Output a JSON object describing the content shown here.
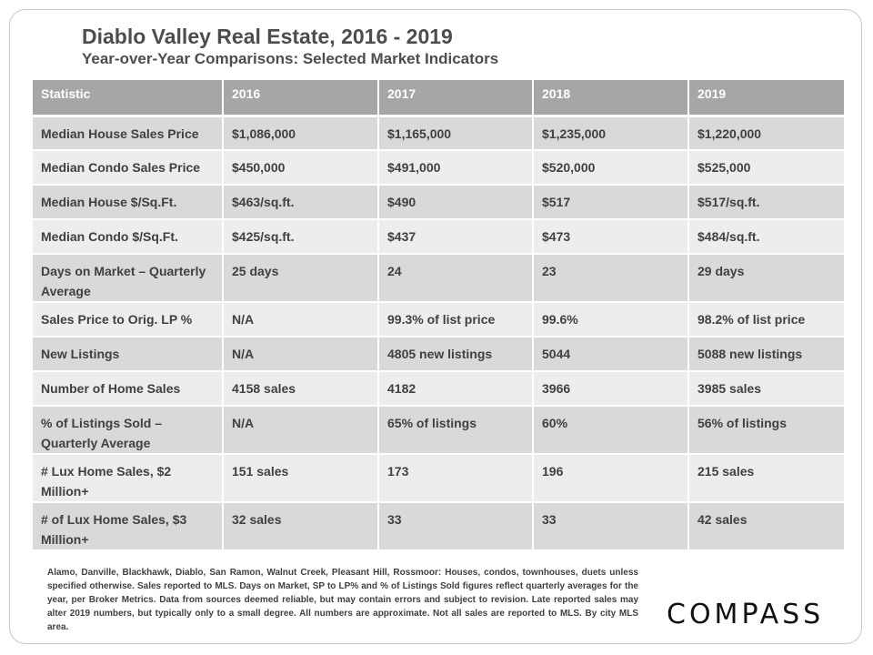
{
  "header": {
    "title": "Diablo Valley Real Estate, 2016 - 2019",
    "subtitle": "Year-over-Year  Comparisons:  Selected Market Indicators"
  },
  "table": {
    "columns": [
      "Statistic",
      "2016",
      "2017",
      "2018",
      "2019"
    ],
    "rows": [
      [
        "Median House Sales Price",
        "$1,086,000",
        "$1,165,000",
        "$1,235,000",
        "$1,220,000"
      ],
      [
        "Median Condo Sales Price",
        "$450,000",
        "$491,000",
        "$520,000",
        "$525,000"
      ],
      [
        "Median House $/Sq.Ft.",
        "$463/sq.ft.",
        "$490",
        "$517",
        "$517/sq.ft."
      ],
      [
        "Median Condo $/Sq.Ft.",
        "$425/sq.ft.",
        "$437",
        "$473",
        "$484/sq.ft."
      ],
      [
        "Days on Market – Quarterly Average",
        "25 days",
        "24",
        "23",
        "29 days"
      ],
      [
        "Sales Price to Orig. LP %",
        "N/A",
        "99.3% of list price",
        "99.6%",
        "98.2% of list price"
      ],
      [
        "New Listings",
        "N/A",
        "4805 new listings",
        "5044",
        "5088 new listings"
      ],
      [
        "Number of Home Sales",
        "4158 sales",
        "4182",
        "3966",
        "3985 sales"
      ],
      [
        "% of Listings Sold – Quarterly Average",
        "N/A",
        "65% of listings",
        "60%",
        "56% of listings"
      ],
      [
        "# Lux Home Sales, $2 Million+",
        "151 sales",
        "173",
        "196",
        "215 sales"
      ],
      [
        "# of Lux Home Sales, $3 Million+",
        "32 sales",
        "33",
        "33",
        "42 sales"
      ]
    ]
  },
  "footnote": "Alamo, Danville, Blackhawk, Diablo, San Ramon, Walnut Creek, Pleasant Hill, Rossmoor: Houses, condos, townhouses, duets unless specified otherwise. Sales reported to MLS. Days on Market, SP to LP%  and % of Listings Sold figures reflect quarterly averages for the year, per Broker Metrics. Data from sources deemed reliable, but may contain errors and subject to revision. Late reported sales may alter 2019 numbers, but typically only to a small degree. All numbers are approximate. Not all sales are reported to MLS. By city MLS area.",
  "logo": "COMPASS"
}
